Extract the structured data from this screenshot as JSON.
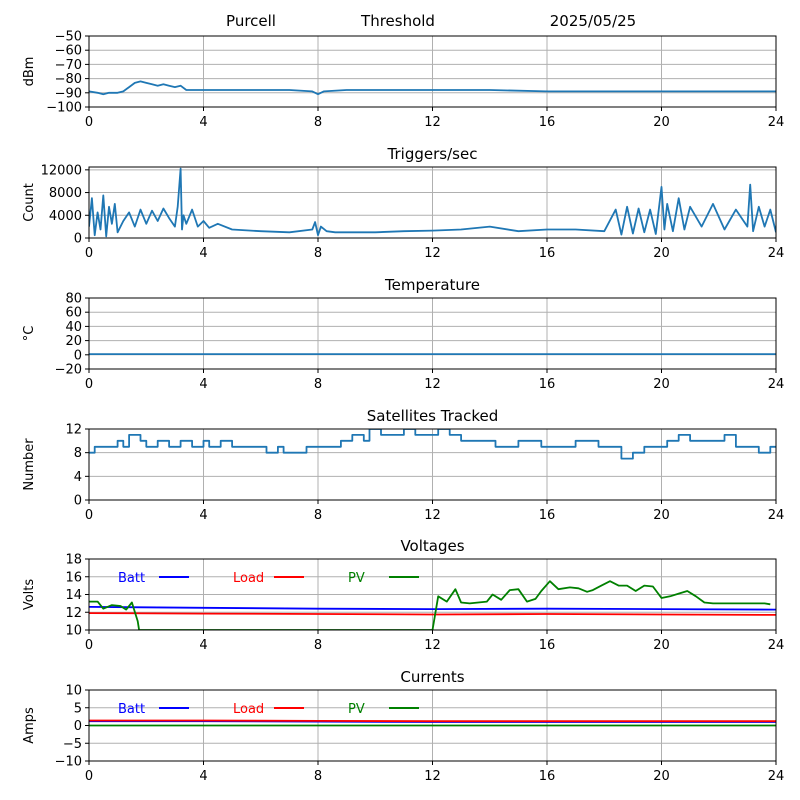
{
  "header": {
    "station": "Purcell",
    "mode": "Threshold",
    "date": "2025/05/25"
  },
  "chart_data": [
    {
      "type": "line",
      "key": "rssi",
      "title": "",
      "ylabel": "dBm",
      "xlim": [
        0,
        24
      ],
      "ylim": [
        -100,
        -50
      ],
      "xticks": [
        "0",
        "4",
        "8",
        "12",
        "16",
        "20",
        "24"
      ],
      "yticks": [
        -100,
        -90,
        -80,
        -70,
        -60,
        -50
      ],
      "grid": true,
      "series": [
        {
          "color": "#1f77b4",
          "x": [
            0,
            0.3,
            0.5,
            0.7,
            1.0,
            1.2,
            1.4,
            1.6,
            1.8,
            2.0,
            2.2,
            2.4,
            2.6,
            2.8,
            3.0,
            3.2,
            3.4,
            3.8,
            5,
            6,
            7,
            7.8,
            8.0,
            8.2,
            9,
            10,
            12,
            14,
            16,
            18,
            20,
            22,
            24
          ],
          "y": [
            -89,
            -90,
            -91,
            -90,
            -90,
            -89,
            -86,
            -83,
            -82,
            -83,
            -84,
            -85,
            -84,
            -85,
            -86,
            -85,
            -88,
            -88,
            -88,
            -88,
            -88,
            -89,
            -91,
            -89,
            -88,
            -88,
            -88,
            -88,
            -89,
            -89,
            -89,
            -89,
            -89
          ]
        }
      ]
    },
    {
      "type": "line",
      "key": "triggers",
      "title": "Triggers/sec",
      "ylabel": "Count",
      "xlim": [
        0,
        24
      ],
      "ylim": [
        0,
        12500
      ],
      "xticks": [
        "0",
        "4",
        "8",
        "12",
        "16",
        "20",
        "24"
      ],
      "yticks": [
        0,
        4000,
        8000,
        12000
      ],
      "grid": true,
      "series": [
        {
          "color": "#1f77b4",
          "x": [
            0,
            0.1,
            0.2,
            0.3,
            0.4,
            0.5,
            0.6,
            0.7,
            0.8,
            0.9,
            1.0,
            1.2,
            1.4,
            1.6,
            1.8,
            2.0,
            2.2,
            2.4,
            2.6,
            2.8,
            3.0,
            3.1,
            3.2,
            3.25,
            3.3,
            3.4,
            3.6,
            3.8,
            4.0,
            4.2,
            4.5,
            5,
            6,
            7,
            7.8,
            7.9,
            8.0,
            8.1,
            8.3,
            8.6,
            9,
            10,
            11,
            12,
            13,
            14,
            15,
            16,
            17,
            18,
            18.4,
            18.6,
            18.8,
            19.0,
            19.2,
            19.4,
            19.6,
            19.8,
            20.0,
            20.1,
            20.2,
            20.4,
            20.6,
            20.8,
            21.0,
            21.4,
            21.8,
            22.2,
            22.6,
            23.0,
            23.1,
            23.2,
            23.4,
            23.6,
            23.8,
            24
          ],
          "y": [
            2000,
            7000,
            500,
            4500,
            1500,
            7500,
            300,
            5500,
            2500,
            6000,
            1000,
            3000,
            4500,
            2000,
            5000,
            2500,
            4800,
            3000,
            5200,
            3500,
            2000,
            5500,
            12200,
            1500,
            4000,
            2500,
            5000,
            2000,
            3000,
            1800,
            2500,
            1500,
            1200,
            1000,
            1500,
            2800,
            500,
            2000,
            1200,
            1000,
            1000,
            1000,
            1200,
            1300,
            1500,
            2000,
            1200,
            1500,
            1500,
            1200,
            5000,
            600,
            5500,
            800,
            5200,
            1000,
            5000,
            700,
            9000,
            1500,
            6000,
            1200,
            7000,
            1500,
            5500,
            2000,
            6000,
            1500,
            5000,
            2000,
            9400,
            1200,
            5500,
            2000,
            5000,
            1000
          ]
        }
      ]
    },
    {
      "type": "line",
      "key": "temperature",
      "title": "Temperature",
      "ylabel": "°C",
      "xlim": [
        0,
        24
      ],
      "ylim": [
        -20,
        80
      ],
      "xticks": [
        "0",
        "4",
        "8",
        "12",
        "16",
        "20",
        "24"
      ],
      "yticks": [
        -20,
        0,
        20,
        40,
        60,
        80
      ],
      "grid": true,
      "series": [
        {
          "color": "#1f77b4",
          "x": [
            0,
            24
          ],
          "y": [
            1,
            1
          ]
        }
      ]
    },
    {
      "type": "line",
      "key": "satellites",
      "title": "Satellites Tracked",
      "ylabel": "Number",
      "xlim": [
        0,
        24
      ],
      "ylim": [
        0,
        12
      ],
      "xticks": [
        "0",
        "4",
        "8",
        "12",
        "16",
        "20",
        "24"
      ],
      "yticks": [
        0,
        4,
        8,
        12
      ],
      "grid": true,
      "series": [
        {
          "color": "#1f77b4",
          "step": true,
          "x": [
            0,
            0.2,
            0.4,
            0.6,
            1.0,
            1.2,
            1.4,
            1.8,
            2.0,
            2.4,
            2.8,
            3.2,
            3.6,
            4.0,
            4.2,
            4.6,
            5.0,
            5.4,
            5.8,
            6.2,
            6.6,
            6.8,
            7.2,
            7.6,
            8.0,
            8.4,
            8.8,
            9.2,
            9.6,
            9.8,
            10.2,
            10.6,
            11.0,
            11.4,
            11.8,
            12.2,
            12.6,
            13.0,
            13.4,
            13.8,
            14.2,
            14.6,
            15.0,
            15.4,
            15.8,
            16.2,
            16.6,
            17.0,
            17.4,
            17.8,
            18.2,
            18.6,
            19.0,
            19.4,
            19.8,
            20.2,
            20.6,
            21.0,
            21.4,
            21.8,
            22.2,
            22.6,
            23.0,
            23.4,
            23.8,
            24
          ],
          "y": [
            8,
            9,
            9,
            9,
            10,
            9,
            11,
            10,
            9,
            10,
            9,
            10,
            9,
            10,
            9,
            10,
            9,
            9,
            9,
            8,
            9,
            8,
            8,
            9,
            9,
            9,
            10,
            11,
            10,
            12,
            11,
            11,
            12,
            11,
            11,
            12,
            11,
            10,
            10,
            10,
            9,
            9,
            10,
            10,
            9,
            9,
            9,
            10,
            10,
            9,
            9,
            7,
            8,
            9,
            9,
            10,
            11,
            10,
            10,
            10,
            11,
            9,
            9,
            8,
            9,
            9
          ]
        }
      ]
    },
    {
      "type": "line",
      "key": "voltages",
      "title": "Voltages",
      "ylabel": "Volts",
      "xlim": [
        0,
        24
      ],
      "ylim": [
        10,
        18
      ],
      "xticks": [
        "0",
        "4",
        "8",
        "12",
        "16",
        "20",
        "24"
      ],
      "yticks": [
        10,
        12,
        14,
        16,
        18
      ],
      "grid": true,
      "series": [
        {
          "name": "Batt",
          "color": "#0000ff",
          "x": [
            0,
            4,
            8,
            12,
            16,
            20,
            24
          ],
          "y": [
            12.6,
            12.5,
            12.4,
            12.35,
            12.4,
            12.35,
            12.3
          ]
        },
        {
          "name": "Load",
          "color": "#ff0000",
          "x": [
            0,
            4,
            8,
            12,
            16,
            20,
            24
          ],
          "y": [
            11.9,
            11.85,
            11.8,
            11.75,
            11.8,
            11.75,
            11.7
          ]
        },
        {
          "name": "PV",
          "color": "#008000",
          "x": [
            0,
            0.3,
            0.5,
            0.8,
            1.1,
            1.3,
            1.5,
            1.7,
            1.75,
            12.0,
            12.2,
            12.5,
            12.8,
            13.0,
            13.3,
            13.6,
            13.9,
            14.1,
            14.4,
            14.7,
            15.0,
            15.3,
            15.6,
            15.8,
            16.1,
            16.4,
            16.8,
            17.1,
            17.4,
            17.6,
            17.9,
            18.2,
            18.5,
            18.8,
            19.1,
            19.4,
            19.7,
            20.0,
            20.3,
            20.6,
            20.9,
            21.2,
            21.5,
            21.8,
            22.1,
            22.4,
            22.7,
            23.0,
            23.3,
            23.6,
            23.8
          ],
          "y": [
            13.2,
            13.2,
            12.4,
            12.8,
            12.7,
            12.3,
            13.1,
            11.0,
            10.0,
            10.0,
            13.8,
            13.2,
            14.6,
            13.1,
            13.0,
            13.1,
            13.2,
            14.0,
            13.4,
            14.5,
            14.6,
            13.2,
            13.5,
            14.4,
            15.5,
            14.6,
            14.8,
            14.7,
            14.3,
            14.5,
            15.0,
            15.5,
            15.0,
            15.0,
            14.4,
            15.0,
            14.9,
            13.6,
            13.8,
            14.1,
            14.4,
            13.8,
            13.1,
            13.0,
            13.0,
            13.0,
            13.0,
            13.0,
            13.0,
            13.0,
            12.9
          ]
        }
      ]
    },
    {
      "type": "line",
      "key": "currents",
      "title": "Currents",
      "ylabel": "Amps",
      "xlim": [
        0,
        24
      ],
      "ylim": [
        -10,
        10
      ],
      "xticks": [
        "0",
        "4",
        "8",
        "12",
        "16",
        "20",
        "24"
      ],
      "yticks": [
        -10,
        -5,
        0,
        5,
        10
      ],
      "grid": true,
      "series": [
        {
          "name": "Batt",
          "color": "#0000ff",
          "x": [
            0,
            4,
            8,
            12,
            16,
            20,
            24
          ],
          "y": [
            1.2,
            1.2,
            1.1,
            1.0,
            1.0,
            1.0,
            1.0
          ]
        },
        {
          "name": "Load",
          "color": "#ff0000",
          "x": [
            0,
            4,
            8,
            12,
            16,
            20,
            24
          ],
          "y": [
            1.4,
            1.4,
            1.3,
            1.2,
            1.2,
            1.2,
            1.2
          ]
        },
        {
          "name": "PV",
          "color": "#008000",
          "x": [
            0,
            24
          ],
          "y": [
            0,
            0
          ]
        }
      ]
    }
  ]
}
